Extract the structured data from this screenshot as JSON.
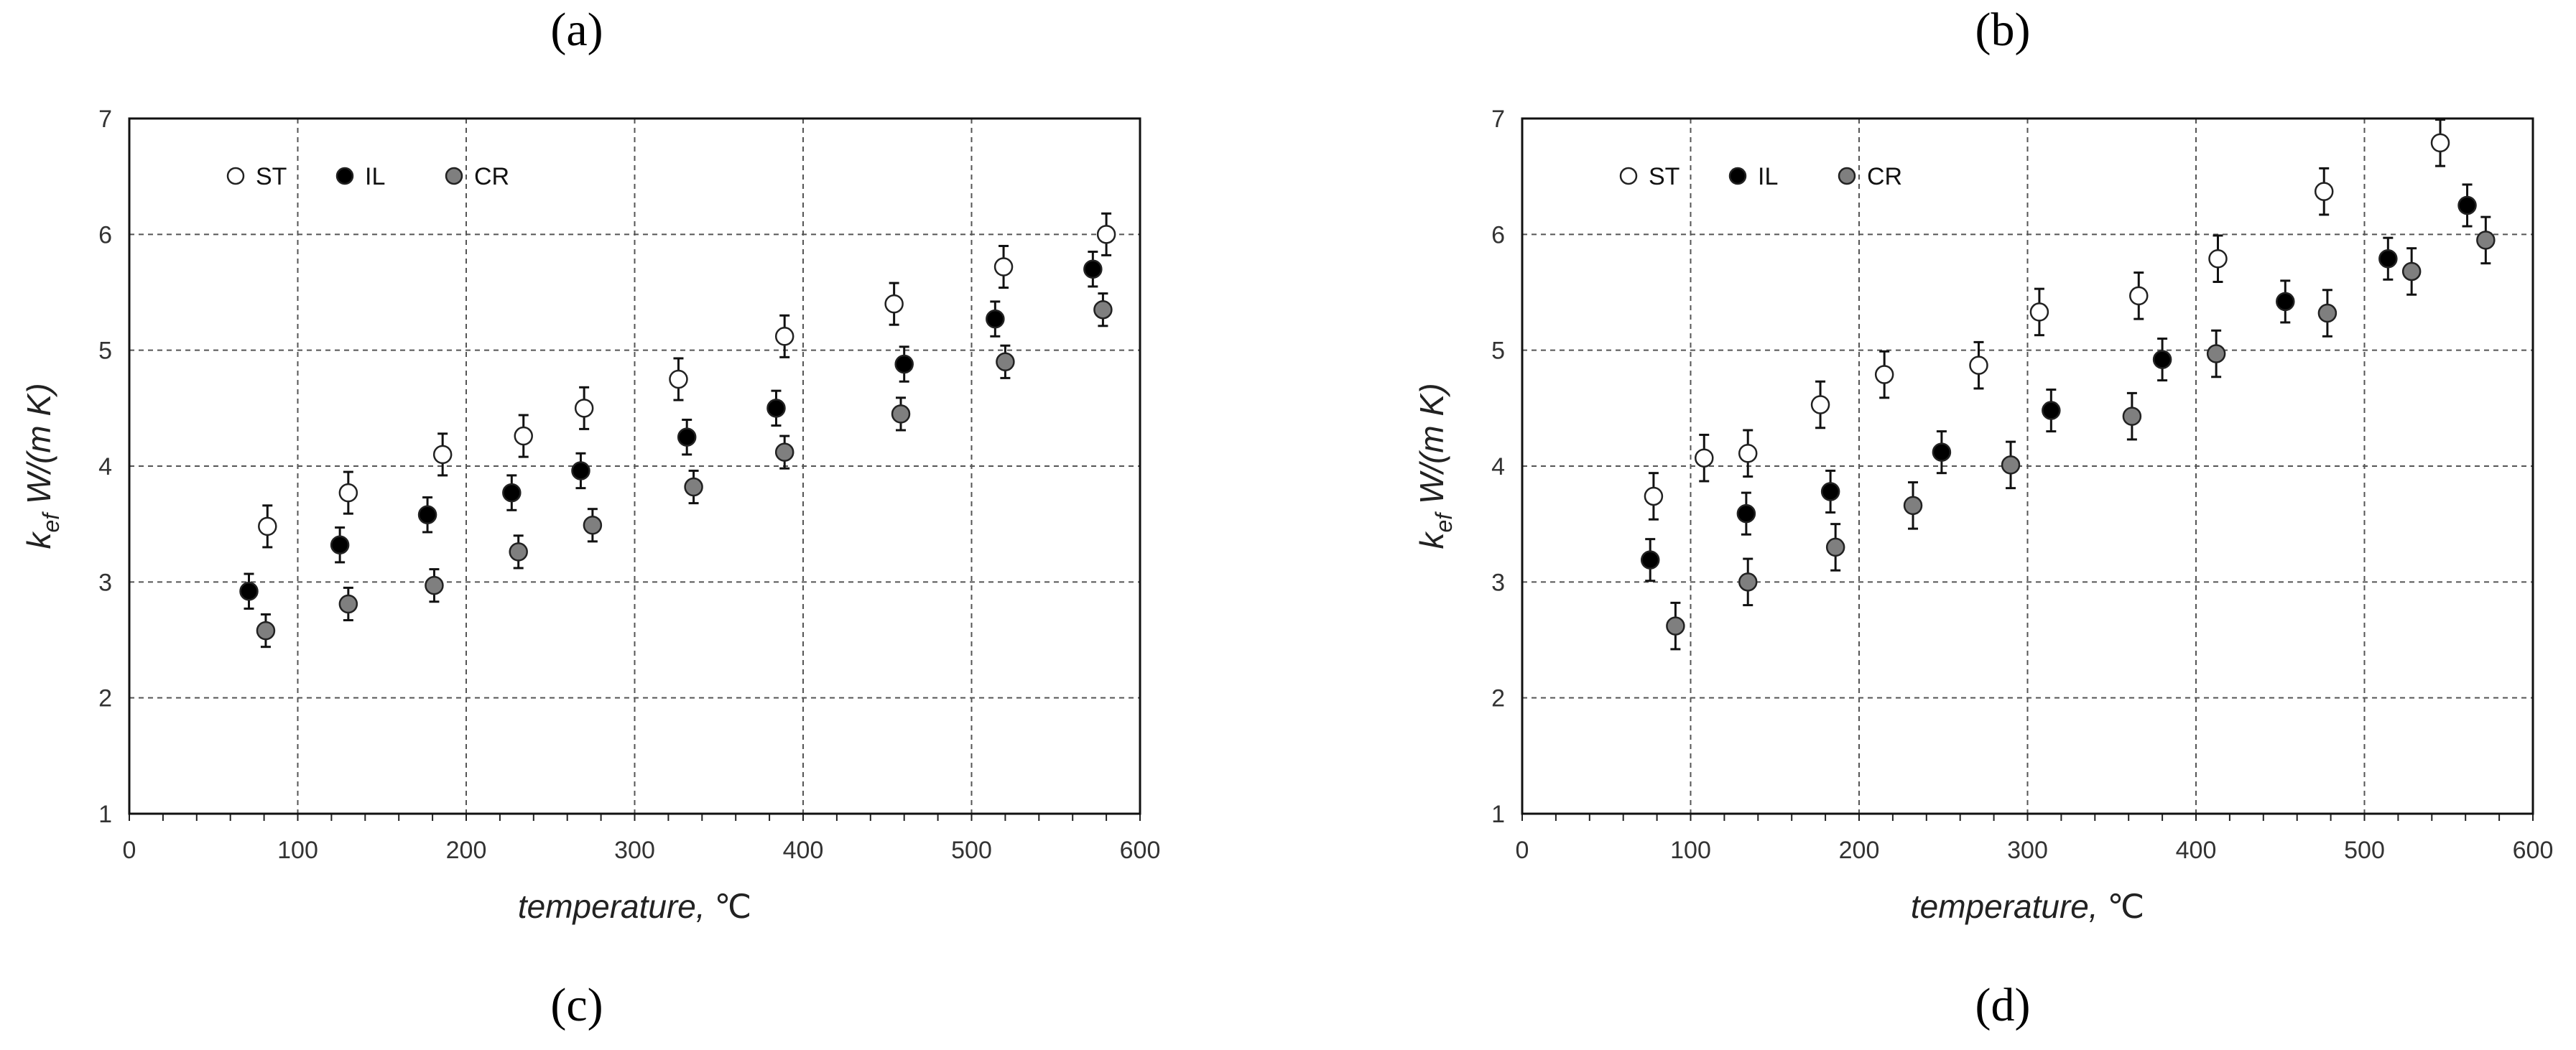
{
  "labels": {
    "a": "(a)",
    "b": "(b)",
    "c": "(c)",
    "d": "(d)"
  },
  "colors": {
    "ST": "#ffffff",
    "IL": "#000000",
    "CR": "#7f7f7f"
  },
  "chart_data": [
    {
      "type": "scatter",
      "panel": "left",
      "xlabel_main": "temperature, ",
      "xlabel_unit": "℃",
      "ylabel_symbol": "k",
      "ylabel_sub": "ef",
      "ylabel_rest": " W/(m K)",
      "xlim": [
        0,
        600
      ],
      "ylim": [
        1,
        7
      ],
      "xticks": [
        0,
        100,
        200,
        300,
        400,
        500,
        600
      ],
      "yticks": [
        1,
        2,
        3,
        4,
        5,
        6,
        7
      ],
      "grid": true,
      "legend": "top-left",
      "series": [
        {
          "name": "ST",
          "points": [
            [
              82,
              3.48
            ],
            [
              130,
              3.77
            ],
            [
              186,
              4.1
            ],
            [
              234,
              4.26
            ],
            [
              270,
              4.5
            ],
            [
              326,
              4.75
            ],
            [
              389,
              5.12
            ],
            [
              454,
              5.4
            ],
            [
              519,
              5.72
            ],
            [
              580,
              6.0
            ]
          ],
          "error": 0.18
        },
        {
          "name": "IL",
          "points": [
            [
              71,
              2.92
            ],
            [
              125,
              3.32
            ],
            [
              177,
              3.58
            ],
            [
              227,
              3.77
            ],
            [
              268,
              3.96
            ],
            [
              331,
              4.25
            ],
            [
              384,
              4.5
            ],
            [
              460,
              4.88
            ],
            [
              514,
              5.27
            ],
            [
              572,
              5.7
            ]
          ],
          "error": 0.15
        },
        {
          "name": "CR",
          "points": [
            [
              81,
              2.58
            ],
            [
              130,
              2.81
            ],
            [
              181,
              2.97
            ],
            [
              231,
              3.26
            ],
            [
              275,
              3.49
            ],
            [
              335,
              3.82
            ],
            [
              389,
              4.12
            ],
            [
              458,
              4.45
            ],
            [
              520,
              4.9
            ],
            [
              578,
              5.35
            ]
          ],
          "error": 0.14
        }
      ]
    },
    {
      "type": "scatter",
      "panel": "right",
      "xlabel_main": "temperature, ",
      "xlabel_unit": "℃",
      "ylabel_symbol": "k",
      "ylabel_sub": "ef",
      "ylabel_rest": " W/(m K)",
      "xlim": [
        0,
        600
      ],
      "ylim": [
        1,
        7
      ],
      "xticks": [
        0,
        100,
        200,
        300,
        400,
        500,
        600
      ],
      "yticks": [
        1,
        2,
        3,
        4,
        5,
        6,
        7
      ],
      "grid": true,
      "legend": "top-left",
      "series": [
        {
          "name": "ST",
          "points": [
            [
              78,
              3.74
            ],
            [
              108,
              4.07
            ],
            [
              134,
              4.11
            ],
            [
              177,
              4.53
            ],
            [
              215,
              4.79
            ],
            [
              271,
              4.87
            ],
            [
              307,
              5.33
            ],
            [
              366,
              5.47
            ],
            [
              413,
              5.79
            ],
            [
              476,
              6.37
            ],
            [
              545,
              6.79
            ]
          ],
          "error": 0.2
        },
        {
          "name": "IL",
          "points": [
            [
              76,
              3.19
            ],
            [
              133,
              3.59
            ],
            [
              183,
              3.78
            ],
            [
              249,
              4.12
            ],
            [
              314,
              4.48
            ],
            [
              380,
              4.92
            ],
            [
              453,
              5.42
            ],
            [
              514,
              5.79
            ],
            [
              561,
              6.25
            ]
          ],
          "error": 0.18
        },
        {
          "name": "CR",
          "points": [
            [
              91,
              2.62
            ],
            [
              134,
              3.0
            ],
            [
              186,
              3.3
            ],
            [
              232,
              3.66
            ],
            [
              290,
              4.01
            ],
            [
              362,
              4.43
            ],
            [
              412,
              4.97
            ],
            [
              478,
              5.32
            ],
            [
              528,
              5.68
            ],
            [
              572,
              5.95
            ]
          ],
          "error": 0.2
        }
      ]
    }
  ]
}
